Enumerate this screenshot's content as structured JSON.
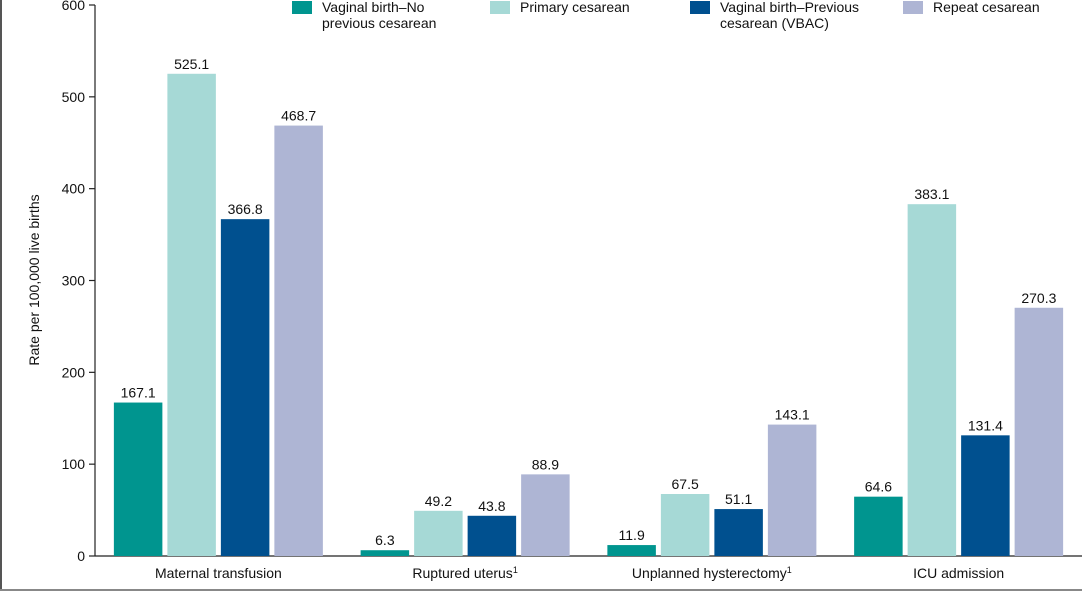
{
  "chart_data": {
    "type": "bar",
    "title": "",
    "xlabel": "",
    "ylabel": "Rate per 100,000 live births",
    "ylim": [
      0,
      600
    ],
    "yticks": [
      0,
      100,
      200,
      300,
      400,
      500,
      600
    ],
    "grid": false,
    "legend_position": "top-right",
    "categories": [
      {
        "label": "Maternal transfusion",
        "superscript": ""
      },
      {
        "label": "Ruptured uterus",
        "superscript": "1"
      },
      {
        "label": "Unplanned hysterectomy",
        "superscript": "1"
      },
      {
        "label": "ICU admission",
        "superscript": ""
      }
    ],
    "series": [
      {
        "name": "Vaginal birth–No previous cesarean",
        "legend_lines": [
          "Vaginal birth–No",
          "previous cesarean"
        ],
        "color": "#00958f",
        "values": [
          167.1,
          6.3,
          11.9,
          64.6
        ],
        "labels": [
          "167.1",
          "6.3",
          "11.9",
          "64.6"
        ]
      },
      {
        "name": "Primary cesarean",
        "legend_lines": [
          "Primary cesarean"
        ],
        "color": "#a6d9d6",
        "values": [
          525.1,
          49.2,
          67.5,
          383.1
        ],
        "labels": [
          "525.1",
          "49.2",
          "67.5",
          "383.1"
        ]
      },
      {
        "name": "Vaginal birth–Previous cesarean (VBAC)",
        "legend_lines": [
          "Vaginal birth–Previous",
          "cesarean (VBAC)"
        ],
        "color": "#00508f",
        "values": [
          366.8,
          43.8,
          51.1,
          131.4
        ],
        "labels": [
          "366.8",
          "43.8",
          "51.1",
          "131.4"
        ]
      },
      {
        "name": "Repeat cesarean",
        "legend_lines": [
          "Repeat cesarean"
        ],
        "color": "#aeb5d4",
        "values": [
          468.7,
          88.9,
          143.1,
          270.3
        ],
        "labels": [
          "468.7",
          "88.9",
          "143.1",
          "270.3"
        ]
      }
    ]
  }
}
